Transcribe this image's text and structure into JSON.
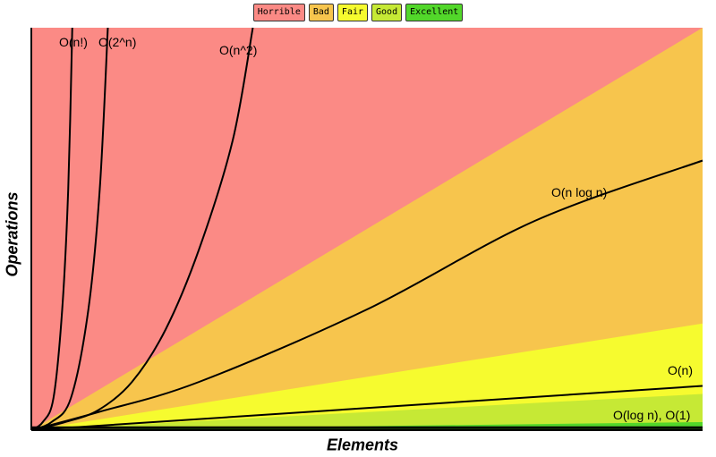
{
  "chart_data": {
    "type": "area",
    "title": "",
    "xlabel": "Elements",
    "ylabel": "Operations",
    "xlim": [
      0,
      100
    ],
    "ylim": [
      0,
      100
    ],
    "grid": false,
    "legend_placement": "top-center",
    "legend": [
      {
        "label": "Horrible",
        "color": "#fb8a85"
      },
      {
        "label": "Bad",
        "color": "#f7c54d"
      },
      {
        "label": "Fair",
        "color": "#f6fb2f"
      },
      {
        "label": "Good",
        "color": "#c6e935"
      },
      {
        "label": "Excellent",
        "color": "#52d72a"
      }
    ],
    "regions": [
      {
        "name": "Horrible",
        "color": "#fb8a85",
        "y_at_x_max": 100
      },
      {
        "name": "Bad",
        "color": "#f7c54d",
        "y_at_x_max": 100
      },
      {
        "name": "Fair",
        "color": "#f6fb2f",
        "y_at_x_max": 26.5
      },
      {
        "name": "Good",
        "color": "#c6e935",
        "y_at_x_max": 9
      },
      {
        "name": "Excellent",
        "color": "#52d72a",
        "y_at_x_max": 2
      }
    ],
    "series": [
      {
        "name": "O(n!)",
        "label": "O(n!)",
        "points": [
          [
            0,
            0
          ],
          [
            1.7,
            2
          ],
          [
            3.3,
            8
          ],
          [
            4.6,
            30
          ],
          [
            5.5,
            60
          ],
          [
            6.1,
            100
          ]
        ]
      },
      {
        "name": "O(2^n)",
        "label": "O(2^n)",
        "points": [
          [
            0,
            0
          ],
          [
            3,
            2
          ],
          [
            5.9,
            8
          ],
          [
            8.5,
            30
          ],
          [
            10.2,
            60
          ],
          [
            11.4,
            100
          ]
        ]
      },
      {
        "name": "O(n^2)",
        "label": "O(n^2)",
        "points": [
          [
            0,
            0
          ],
          [
            5,
            2
          ],
          [
            10,
            5
          ],
          [
            15,
            12
          ],
          [
            20,
            25
          ],
          [
            25,
            45
          ],
          [
            30,
            72
          ],
          [
            33,
            100
          ]
        ]
      },
      {
        "name": "O(n log n)",
        "label": "O(n log n)",
        "points": [
          [
            0,
            0
          ],
          [
            10,
            4.5
          ],
          [
            25,
            12
          ],
          [
            50,
            30
          ],
          [
            75,
            52
          ],
          [
            100,
            67
          ]
        ]
      },
      {
        "name": "O(n)",
        "label": "O(n)",
        "points": [
          [
            0,
            0
          ],
          [
            100,
            11
          ]
        ]
      },
      {
        "name": "O(log n)",
        "label": "O(log n), O(1)",
        "points": [
          [
            0,
            0.6
          ],
          [
            100,
            0.6
          ]
        ]
      }
    ]
  }
}
